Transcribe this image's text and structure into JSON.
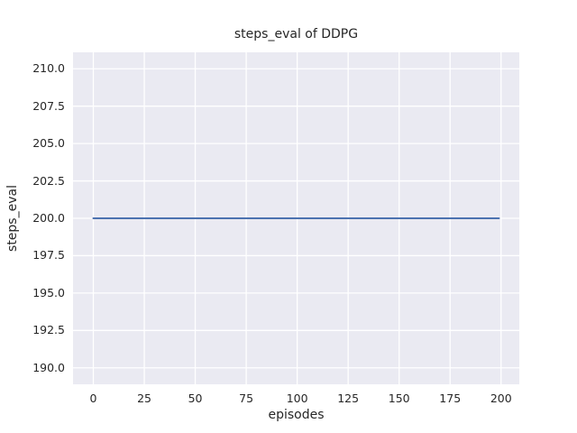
{
  "figure": {
    "background": "#ffffff"
  },
  "chart_data": {
    "type": "line",
    "title": "steps_eval of DDPG",
    "xlabel": "episodes",
    "ylabel": "steps_eval",
    "xlim": [
      -9.95,
      208.95
    ],
    "ylim": [
      188.9,
      211.1
    ],
    "xticks": [
      0,
      25,
      50,
      75,
      100,
      125,
      150,
      175,
      200
    ],
    "xtick_labels": [
      "0",
      "25",
      "50",
      "75",
      "100",
      "125",
      "150",
      "175",
      "200"
    ],
    "yticks": [
      190.0,
      192.5,
      195.0,
      197.5,
      200.0,
      202.5,
      205.0,
      207.5,
      210.0
    ],
    "ytick_labels": [
      "190.0",
      "192.5",
      "195.0",
      "197.5",
      "200.0",
      "202.5",
      "205.0",
      "207.5",
      "210.0"
    ],
    "grid": true,
    "legend_position": "none",
    "series": [
      {
        "name": "steps_eval",
        "color": "#4c72b0",
        "x": [
          0,
          199
        ],
        "y": [
          200.0,
          200.0
        ]
      }
    ],
    "styles": {
      "plot_background": "#eaeaf2",
      "grid_color": "#ffffff",
      "text_color": "#262626"
    }
  }
}
